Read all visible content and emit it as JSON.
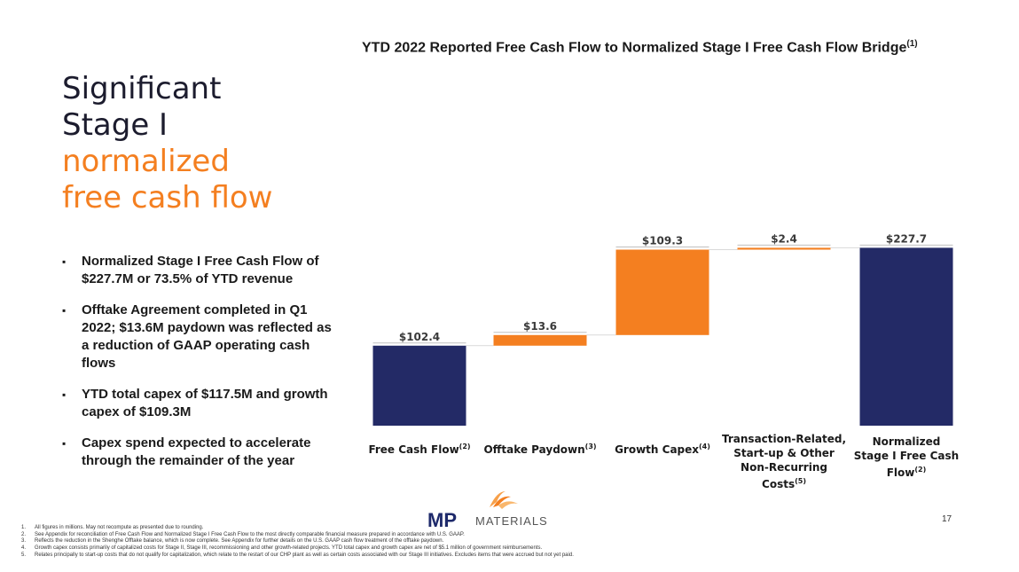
{
  "slide": {
    "title_line1": "Significant",
    "title_line2": "Stage I",
    "title_line3": "normalized",
    "title_line4": "free cash flow",
    "bullets": [
      "Normalized Stage I Free Cash Flow of $227.7M or 73.5% of YTD revenue",
      "Offtake Agreement completed in Q1 2022; $13.6M paydown was reflected as a reduction of GAAP operating cash flows",
      "YTD total capex of $117.5M and growth capex of $109.3M",
      "Capex spend expected to accelerate through the remainder of the year"
    ],
    "page_number": "17",
    "logo_letters": "MP",
    "logo_word": "MATERIALS",
    "footnotes": [
      {
        "num": "1.",
        "text": "All figures in millions. May not recompute as presented due to rounding."
      },
      {
        "num": "2.",
        "text": "See Appendix for reconciliation of Free Cash Flow and Normalized Stage I Free Cash Flow to the most directly comparable financial measure prepared in accordance with U.S. GAAP."
      },
      {
        "num": "3.",
        "text": "Reflects the reduction in the Shenghe Offtake balance, which is now complete. See Appendix for further details on the U.S. GAAP cash flow treatment of the offtake paydown."
      },
      {
        "num": "4.",
        "text": "Growth capex consists primarily of capitalized costs for Stage II, Stage III, recommissioning and other growth-related projects. YTD total capex and growth capex are net of $5.1 million of government reimbursements."
      },
      {
        "num": "5.",
        "text": "Relates principally to start-up costs that do not qualify for capitalization, which relate to the restart of our CHP plant as well as certain costs associated with our Stage III initiatives. Excludes items that were accrued but not yet paid."
      }
    ]
  },
  "chart_data": {
    "type": "bar",
    "subtype": "waterfall",
    "title": "YTD 2022 Reported Free Cash Flow to Normalized Stage I Free Cash Flow Bridge",
    "title_sup": "(1)",
    "categories": [
      {
        "label": "Free Cash Flow",
        "sup": "(2)"
      },
      {
        "label": "Offtake Paydown",
        "sup": "(3)"
      },
      {
        "label": "Growth Capex",
        "sup": "(4)"
      },
      {
        "label": "Transaction-Related, Start-up & Other Non-Recurring Costs",
        "sup": "(5)"
      },
      {
        "label": "Normalized Stage I Free Cash Flow",
        "sup": "(2)"
      }
    ],
    "values": [
      102.4,
      13.6,
      109.3,
      2.4,
      227.7
    ],
    "value_labels": [
      "$102.4",
      "$13.6",
      "$109.3",
      "$2.4",
      "$227.7"
    ],
    "kinds": [
      "total",
      "increment",
      "increment",
      "increment",
      "total"
    ],
    "colors": {
      "total": "#232a66",
      "increment": "#f47f20"
    },
    "ylim": [
      0,
      245
    ]
  }
}
